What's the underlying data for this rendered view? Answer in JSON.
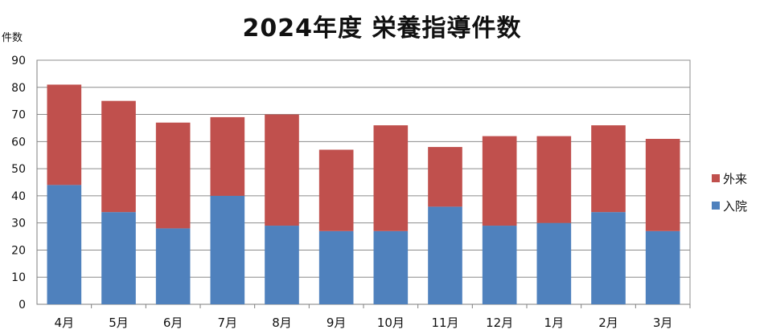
{
  "chart_data": {
    "type": "bar",
    "stacked": true,
    "title": "2024年度  栄養指導件数",
    "ylabel": "件数",
    "xlabel": "",
    "categories": [
      "4月",
      "5月",
      "6月",
      "7月",
      "8月",
      "9月",
      "10月",
      "11月",
      "12月",
      "1月",
      "2月",
      "3月"
    ],
    "ylim": [
      0,
      90
    ],
    "yticks": [
      0,
      10,
      20,
      30,
      40,
      50,
      60,
      70,
      80,
      90
    ],
    "grid": true,
    "legend_position": "right",
    "series": [
      {
        "name": "入院",
        "color": "#4F81BD",
        "values": [
          44,
          34,
          28,
          40,
          29,
          27,
          27,
          36,
          29,
          30,
          34,
          27
        ]
      },
      {
        "name": "外来",
        "color": "#C0504D",
        "values": [
          37,
          41,
          39,
          29,
          41,
          30,
          39,
          22,
          33,
          32,
          32,
          34
        ]
      }
    ]
  }
}
